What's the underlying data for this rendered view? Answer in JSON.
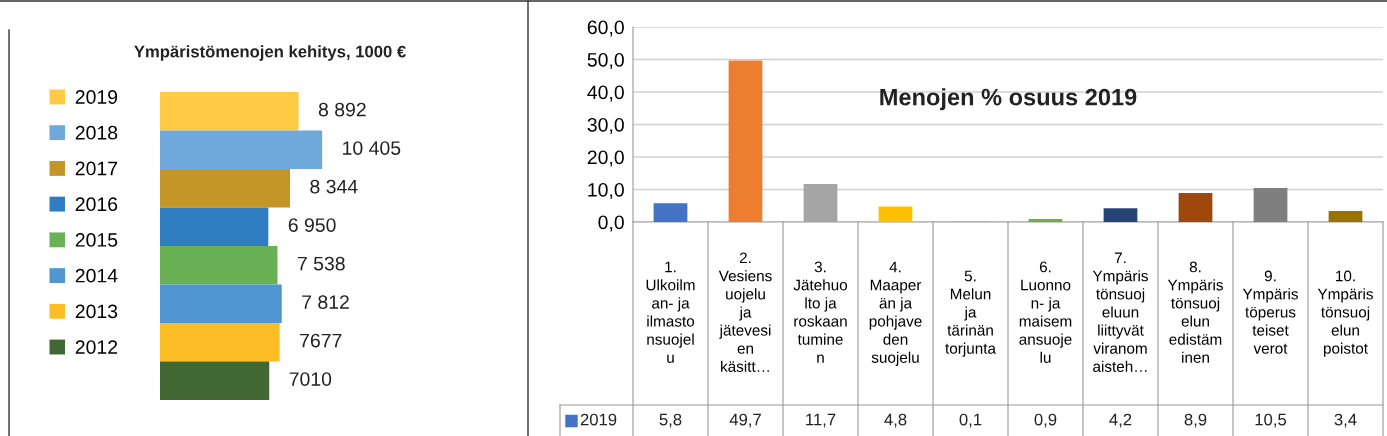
{
  "chart_data": [
    {
      "type": "bar",
      "orientation": "horizontal",
      "title": "Ympäristömenojen kehitys, 1000 €",
      "categories": [
        null
      ],
      "series": [
        {
          "name": "2019",
          "color": "#ffcb45",
          "values": [
            8892
          ],
          "value_labels": [
            "8 892"
          ]
        },
        {
          "name": "2018",
          "color": "#6fa8da",
          "values": [
            10405
          ],
          "value_labels": [
            "10 405"
          ]
        },
        {
          "name": "2017",
          "color": "#c49628",
          "values": [
            8344
          ],
          "value_labels": [
            "8 344"
          ]
        },
        {
          "name": "2016",
          "color": "#2f7ec2",
          "values": [
            6950
          ],
          "value_labels": [
            "6 950"
          ]
        },
        {
          "name": "2015",
          "color": "#6ab155",
          "values": [
            7538
          ],
          "value_labels": [
            "7 538"
          ]
        },
        {
          "name": "2014",
          "color": "#4f96d2",
          "values": [
            7812
          ],
          "value_labels": [
            "7 812"
          ]
        },
        {
          "name": "2013",
          "color": "#fdbd27",
          "values": [
            7677
          ],
          "value_labels": [
            "7677"
          ]
        },
        {
          "name": "2012",
          "color": "#416832",
          "values": [
            7010
          ],
          "value_labels": [
            "7010"
          ]
        }
      ],
      "legend": "left"
    },
    {
      "type": "bar",
      "title": "Menojen % osuus 2019",
      "categories": [
        "1.\nUlkoilm\nan- ja\nilmasto\nnsuojel\nu",
        "2.\nVesiens\nuojelu\nja\njätevesi\nen\nkäsitt…",
        "3.\nJätehuo\nlto ja\nroskaan\ntumine\nn",
        "4.\nMaaper\nän ja\npohjave\nden\nsuojelu",
        "5.\nMelun\nja\ntärinän\ntorjunta",
        "6.\nLuonno\nn- ja\nmaisem\nansuoje\nlu",
        "7.\nYmpäris\ntönsuoj\neluun\nliittyvät\nviranom\naisteh…",
        "8.\nYmpäris\ntönsuoj\nelun\nedistäm\ninen",
        "9.\nYmpäris\ntöperus\nteiset\nverot",
        "10.\nYmpäris\ntönsuoj\nelun\npoistot"
      ],
      "series": [
        {
          "name": "2019",
          "color": "#4472c4",
          "colors": [
            "#4472c4",
            "#ed7d31",
            "#a5a5a5",
            "#ffc000",
            "#5b9bd5",
            "#70ad47",
            "#264478",
            "#9e480e",
            "#7f7f7f",
            "#997300"
          ],
          "values": [
            5.8,
            49.7,
            11.7,
            4.8,
            0.1,
            0.9,
            4.2,
            8.9,
            10.5,
            3.4
          ],
          "value_labels": [
            "5,8",
            "49,7",
            "11,7",
            "4,8",
            "0,1",
            "0,9",
            "4,2",
            "8,9",
            "10,5",
            "3,4"
          ]
        }
      ],
      "ylim": [
        0,
        60
      ],
      "yticks": [
        {
          "value": 0,
          "label": "0,0"
        },
        {
          "value": 10,
          "label": "10,0"
        },
        {
          "value": 20,
          "label": "20,0"
        },
        {
          "value": 30,
          "label": "30,0"
        },
        {
          "value": 40,
          "label": "40,0"
        },
        {
          "value": 50,
          "label": "50,0"
        },
        {
          "value": 60,
          "label": "60,0"
        }
      ],
      "grid": "y"
    }
  ]
}
